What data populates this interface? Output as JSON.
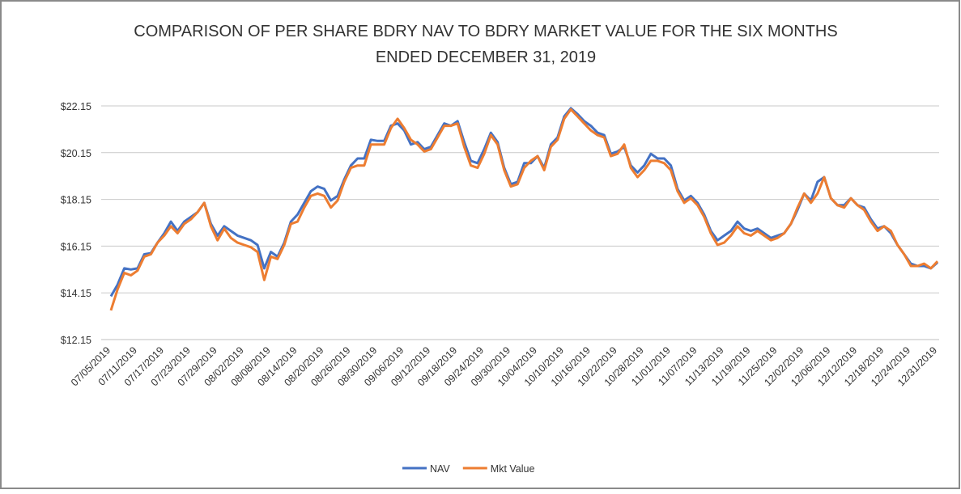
{
  "chart_data": {
    "type": "line",
    "title": [
      "COMPARISON OF PER SHARE BDRY NAV TO BDRY MARKET VALUE FOR THE SIX MONTHS",
      "ENDED DECEMBER 31, 2019"
    ],
    "categories": [
      "07/05/2019",
      null,
      null,
      null,
      "07/11/2019",
      null,
      null,
      null,
      "07/17/2019",
      null,
      null,
      null,
      "07/23/2019",
      null,
      null,
      null,
      "07/29/2019",
      null,
      null,
      null,
      "08/02/2019",
      null,
      null,
      null,
      "08/08/2019",
      null,
      null,
      null,
      "08/14/2019",
      null,
      null,
      null,
      "08/20/2019",
      null,
      null,
      null,
      "08/26/2019",
      null,
      null,
      null,
      "08/30/2019",
      null,
      null,
      null,
      "09/06/2019",
      null,
      null,
      null,
      "09/12/2019",
      null,
      null,
      null,
      "09/18/2019",
      null,
      null,
      null,
      "09/24/2019",
      null,
      null,
      null,
      "09/30/2019",
      null,
      null,
      null,
      "10/04/2019",
      null,
      null,
      null,
      "10/10/2019",
      null,
      null,
      null,
      "10/16/2019",
      null,
      null,
      null,
      "10/22/2019",
      null,
      null,
      null,
      "10/28/2019",
      null,
      null,
      null,
      "11/01/2019",
      null,
      null,
      null,
      "11/07/2019",
      null,
      null,
      null,
      "11/13/2019",
      null,
      null,
      null,
      "11/19/2019",
      null,
      null,
      null,
      "11/25/2019",
      null,
      null,
      null,
      "12/02/2019",
      null,
      null,
      null,
      "12/06/2019",
      null,
      null,
      null,
      "12/12/2019",
      null,
      null,
      null,
      "12/18/2019",
      null,
      null,
      null,
      "12/24/2019",
      null,
      null,
      null,
      "12/31/2019"
    ],
    "series": [
      {
        "name": "NAV",
        "color": "#4472c4",
        "values": [
          14.0,
          14.5,
          15.2,
          15.15,
          15.2,
          15.8,
          15.85,
          16.3,
          16.7,
          17.2,
          16.8,
          17.2,
          17.4,
          17.6,
          18.0,
          17.1,
          16.6,
          17.0,
          16.8,
          16.6,
          16.5,
          16.4,
          16.2,
          15.2,
          15.9,
          15.7,
          16.3,
          17.2,
          17.5,
          18.0,
          18.5,
          18.7,
          18.6,
          18.1,
          18.3,
          19.0,
          19.6,
          19.9,
          19.9,
          20.7,
          20.65,
          20.65,
          21.3,
          21.4,
          21.1,
          20.5,
          20.6,
          20.3,
          20.4,
          20.9,
          21.4,
          21.3,
          21.5,
          20.6,
          19.8,
          19.7,
          20.3,
          21.0,
          20.6,
          19.5,
          18.8,
          18.9,
          19.7,
          19.7,
          20.0,
          19.5,
          20.5,
          20.8,
          21.7,
          22.05,
          21.8,
          21.5,
          21.3,
          21.0,
          20.9,
          20.1,
          20.2,
          20.4,
          19.6,
          19.3,
          19.6,
          20.1,
          19.9,
          19.9,
          19.6,
          18.6,
          18.1,
          18.3,
          18.0,
          17.5,
          16.8,
          16.4,
          16.6,
          16.8,
          17.2,
          16.9,
          16.8,
          16.9,
          16.7,
          16.5,
          16.6,
          16.7,
          17.1,
          17.7,
          18.4,
          18.1,
          18.9,
          19.1,
          18.2,
          17.9,
          17.9,
          18.2,
          17.9,
          17.8,
          17.3,
          16.9,
          17.0,
          16.7,
          16.2,
          15.8,
          15.4,
          15.3,
          15.3,
          15.2,
          15.45
        ]
      },
      {
        "name": "Mkt Value",
        "color": "#ed7d31",
        "values": [
          13.4,
          14.3,
          15.0,
          14.9,
          15.1,
          15.7,
          15.8,
          16.3,
          16.6,
          17.0,
          16.7,
          17.1,
          17.3,
          17.6,
          18.0,
          17.0,
          16.4,
          16.9,
          16.5,
          16.3,
          16.2,
          16.1,
          15.9,
          14.7,
          15.7,
          15.6,
          16.2,
          17.1,
          17.2,
          17.8,
          18.3,
          18.4,
          18.3,
          17.8,
          18.1,
          18.9,
          19.5,
          19.6,
          19.6,
          20.5,
          20.5,
          20.5,
          21.2,
          21.6,
          21.2,
          20.7,
          20.5,
          20.2,
          20.3,
          20.8,
          21.3,
          21.3,
          21.4,
          20.4,
          19.6,
          19.5,
          20.1,
          20.9,
          20.5,
          19.4,
          18.7,
          18.8,
          19.5,
          19.8,
          20.0,
          19.4,
          20.4,
          20.7,
          21.6,
          22.0,
          21.7,
          21.4,
          21.1,
          20.9,
          20.8,
          20.0,
          20.1,
          20.5,
          19.5,
          19.1,
          19.4,
          19.8,
          19.8,
          19.7,
          19.4,
          18.5,
          18.0,
          18.2,
          17.9,
          17.4,
          16.7,
          16.2,
          16.3,
          16.6,
          17.0,
          16.7,
          16.6,
          16.8,
          16.6,
          16.4,
          16.5,
          16.7,
          17.1,
          17.8,
          18.4,
          18.0,
          18.4,
          19.1,
          18.2,
          17.9,
          17.8,
          18.2,
          17.9,
          17.7,
          17.2,
          16.8,
          17.0,
          16.8,
          16.2,
          15.8,
          15.3,
          15.3,
          15.4,
          15.2,
          15.5
        ]
      }
    ],
    "ylim": [
      12.15,
      22.15
    ],
    "yticks": [
      {
        "value": 12.15,
        "label": "$12.15"
      },
      {
        "value": 14.15,
        "label": "$14.15"
      },
      {
        "value": 16.15,
        "label": "$16.15"
      },
      {
        "value": 18.15,
        "label": "$18.15"
      },
      {
        "value": 20.15,
        "label": "$20.15"
      },
      {
        "value": 22.15,
        "label": "$22.15"
      }
    ],
    "grid": true,
    "legend": "bottom"
  }
}
